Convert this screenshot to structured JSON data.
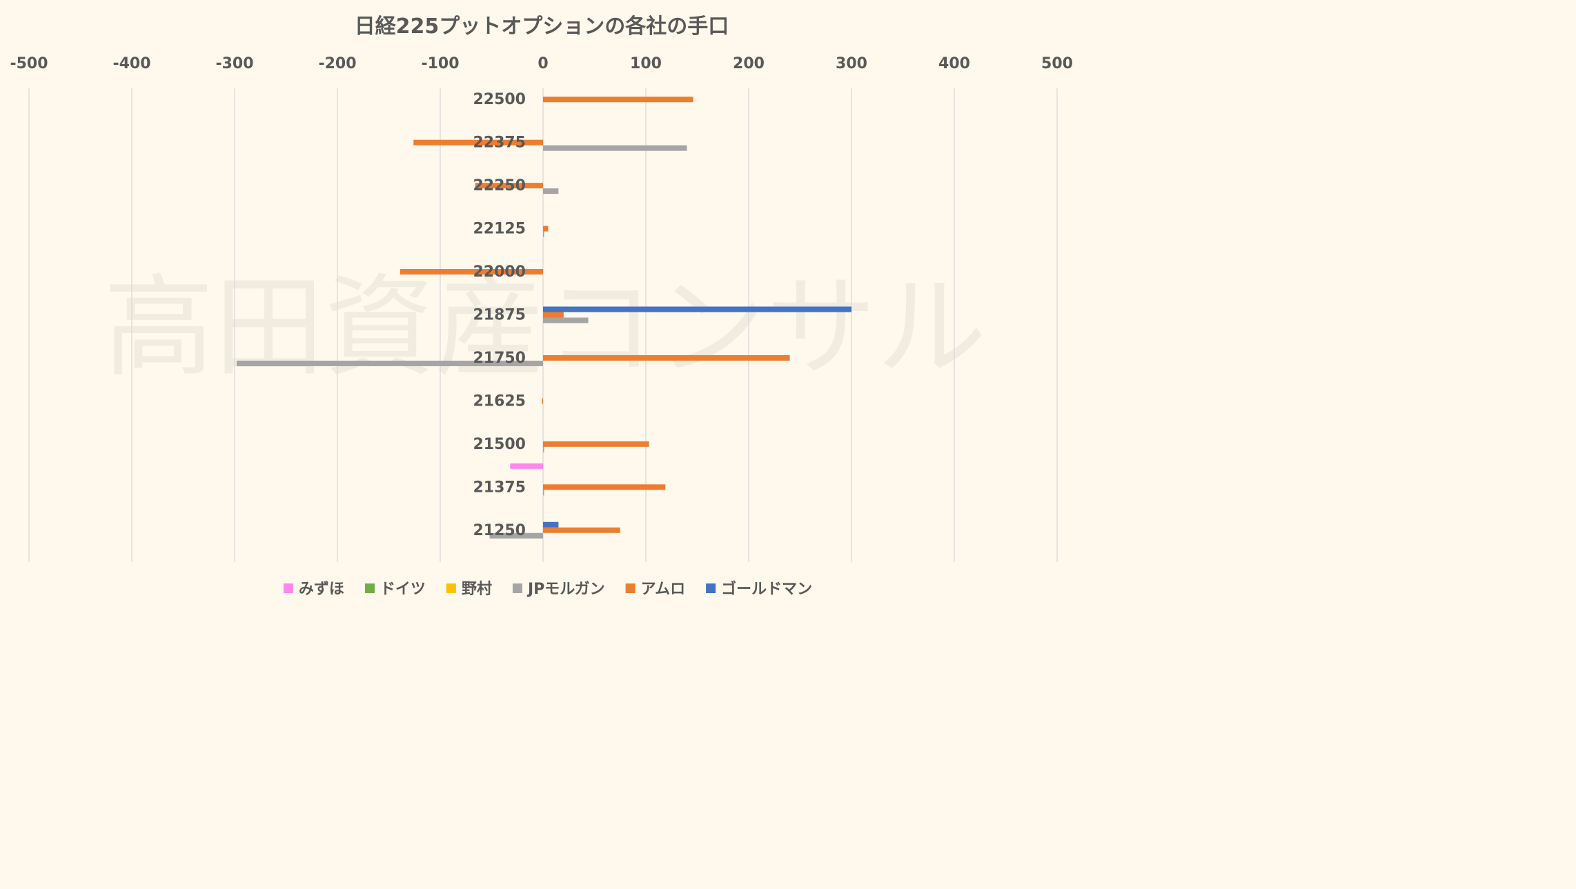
{
  "watermark": "高田資産コンサル",
  "chart_data": {
    "type": "bar",
    "orientation": "horizontal",
    "title": "日経225プットオプションの各社の手口",
    "xlim": [
      -500,
      500
    ],
    "x_ticks": [
      -500,
      -400,
      -300,
      -200,
      -100,
      0,
      100,
      200,
      300,
      400,
      500
    ],
    "x_tick_labels": [
      "-500",
      "-400",
      "-300",
      "-200",
      "-100",
      "0",
      "100",
      "200",
      "300",
      "400",
      "500"
    ],
    "x_axis_position": "top",
    "grid": true,
    "legend_position": "bottom",
    "categories": [
      "22500",
      "22375",
      "22250",
      "22125",
      "22000",
      "21875",
      "21750",
      "21625",
      "21500",
      "21375",
      "21250"
    ],
    "series": [
      {
        "name": "みずほ",
        "color": "#ff88ea",
        "values": [
          0,
          0,
          0,
          0,
          0,
          0,
          0,
          0,
          -32,
          0,
          0
        ]
      },
      {
        "name": "ドイツ",
        "color": "#70ad47",
        "values": [
          0,
          0,
          0,
          0,
          0,
          0,
          0,
          0,
          0,
          0,
          0
        ]
      },
      {
        "name": "野村",
        "color": "#ffc000",
        "values": [
          0,
          0,
          0,
          0,
          0,
          0,
          0,
          0,
          0,
          0,
          0
        ]
      },
      {
        "name": "JPモルガン",
        "color": "#a5a5a5",
        "values": [
          0,
          140,
          15,
          1,
          0,
          44,
          -298,
          0,
          1,
          1,
          -52
        ]
      },
      {
        "name": "アムロ",
        "color": "#ed7d31",
        "values": [
          146,
          -126,
          -66,
          5,
          -139,
          20,
          240,
          -1,
          103,
          119,
          75
        ]
      },
      {
        "name": "ゴールドマン",
        "color": "#4472c4",
        "values": [
          0,
          0,
          0,
          0,
          0,
          300,
          0,
          0,
          0,
          0,
          15
        ]
      }
    ]
  }
}
